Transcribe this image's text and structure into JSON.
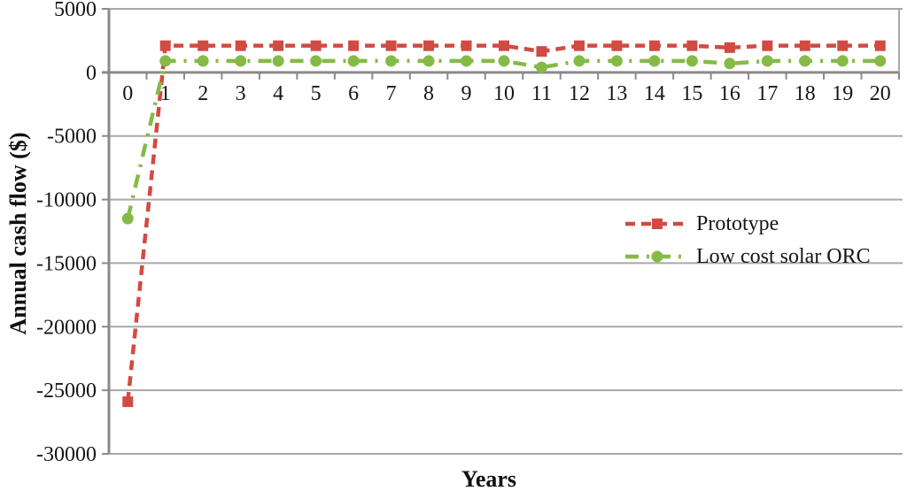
{
  "figure": {
    "background": "#ffffff",
    "axis_color": "#8a8a8a",
    "grid_color": "#a9a9a9",
    "text_color": "#161616"
  },
  "chart_data": {
    "type": "line",
    "title": "",
    "xlabel": "Years",
    "ylabel": "Annual cash flow ($)",
    "x": [
      0,
      1,
      2,
      3,
      4,
      5,
      6,
      7,
      8,
      9,
      10,
      11,
      12,
      13,
      14,
      15,
      16,
      17,
      18,
      19,
      20
    ],
    "series": [
      {
        "name": "Prototype",
        "color": "#d14b42",
        "marker": "square",
        "dash": "11 7",
        "values": [
          -25900,
          2100,
          2100,
          2100,
          2100,
          2100,
          2100,
          2100,
          2100,
          2100,
          2100,
          1650,
          2100,
          2100,
          2100,
          2100,
          1950,
          2100,
          2100,
          2100,
          2100
        ]
      },
      {
        "name": "Low cost solar ORC",
        "color": "#85ba47",
        "marker": "circle",
        "dash": "15 9 3 9",
        "values": [
          -11500,
          900,
          900,
          900,
          900,
          900,
          900,
          900,
          900,
          900,
          900,
          400,
          900,
          900,
          900,
          900,
          700,
          900,
          900,
          900,
          900
        ]
      }
    ],
    "y_ticks": [
      5000,
      0,
      -5000,
      -10000,
      -15000,
      -20000,
      -25000,
      -30000
    ],
    "ylim": [
      -30000,
      5000
    ],
    "grid": "horizontal",
    "legend_position": "middle-right"
  }
}
